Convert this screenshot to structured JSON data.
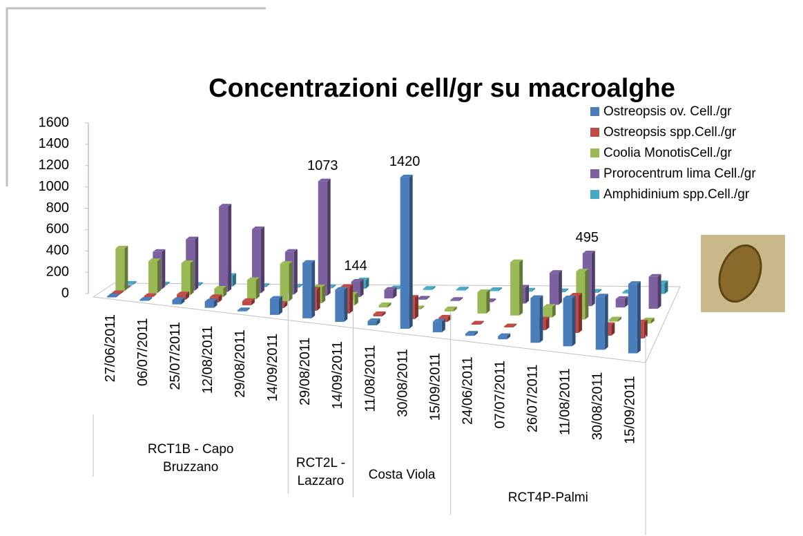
{
  "chart_data": {
    "type": "bar3d",
    "title": "Concentrazioni cell/gr su macroalghe",
    "groups": [
      {
        "label": "RCT1B - Capo Bruzzano",
        "categories": [
          "27/06/2011",
          "06/07/2011",
          "25/07/2011",
          "12/08/2011",
          "29/08/2011",
          "14/09/2011"
        ]
      },
      {
        "label": "RCT2L - Lazzaro",
        "categories": [
          "29/08/2011",
          "14/09/2011"
        ]
      },
      {
        "label": "Costa Viola",
        "categories": [
          "11/08/2011",
          "30/08/2011",
          "15/09/2011"
        ]
      },
      {
        "label": "RCT4P-Palmi",
        "categories": [
          "24/06/2011",
          "07/07/2011",
          "26/07/2011",
          "11/08/2011",
          "30/08/2011",
          "15/09/2011"
        ]
      }
    ],
    "series": [
      {
        "name": "Ostreopsis ov. Cell./gr",
        "color": "#4a7ebb",
        "values": [
          10,
          10,
          40,
          60,
          10,
          150,
          520,
          300,
          40,
          1420,
          100,
          20,
          30,
          420,
          450,
          500,
          650
        ],
        "value_labels": [
          null,
          null,
          null,
          null,
          null,
          null,
          null,
          null,
          null,
          "1420",
          null,
          null,
          null,
          null,
          null,
          null,
          null
        ]
      },
      {
        "name": "Ostreopsis spp.Cell./gr",
        "color": "#be4b48",
        "values": [
          10,
          10,
          50,
          50,
          40,
          40,
          200,
          250,
          20,
          200,
          40,
          10,
          10,
          100,
          350,
          100,
          150
        ],
        "value_labels": [
          null,
          null,
          null,
          null,
          null,
          null,
          null,
          null,
          null,
          null,
          null,
          null,
          null,
          null,
          null,
          null,
          null
        ]
      },
      {
        "name": "Coolia MonotisCell./gr",
        "color": "#98b954",
        "values": [
          400,
          300,
          300,
          80,
          180,
          350,
          150,
          100,
          20,
          10,
          20,
          200,
          500,
          100,
          450,
          20,
          30
        ],
        "value_labels": [
          null,
          null,
          null,
          null,
          null,
          null,
          null,
          null,
          null,
          null,
          null,
          null,
          null,
          null,
          null,
          null,
          null
        ]
      },
      {
        "name": "Prorocentrum lima Cell./gr",
        "color": "#7d60a0",
        "values": [
          0,
          350,
          480,
          800,
          600,
          400,
          1073,
          144,
          80,
          10,
          10,
          10,
          150,
          300,
          495,
          80,
          300
        ],
        "value_labels": [
          null,
          null,
          null,
          null,
          null,
          null,
          "1073",
          "144",
          null,
          null,
          null,
          null,
          null,
          null,
          "495",
          null,
          null
        ]
      },
      {
        "name": "Amphidinium spp.Cell./gr",
        "color": "#46aac5",
        "values": [
          10,
          10,
          10,
          100,
          10,
          10,
          10,
          80,
          10,
          10,
          10,
          10,
          10,
          10,
          10,
          10,
          100
        ],
        "value_labels": [
          null,
          null,
          null,
          null,
          null,
          null,
          null,
          null,
          null,
          null,
          null,
          null,
          null,
          null,
          null,
          null,
          null
        ]
      }
    ],
    "ylim": [
      0,
      1600
    ],
    "yticks": [
      0,
      200,
      400,
      600,
      800,
      1000,
      1200,
      1400,
      1600
    ]
  }
}
